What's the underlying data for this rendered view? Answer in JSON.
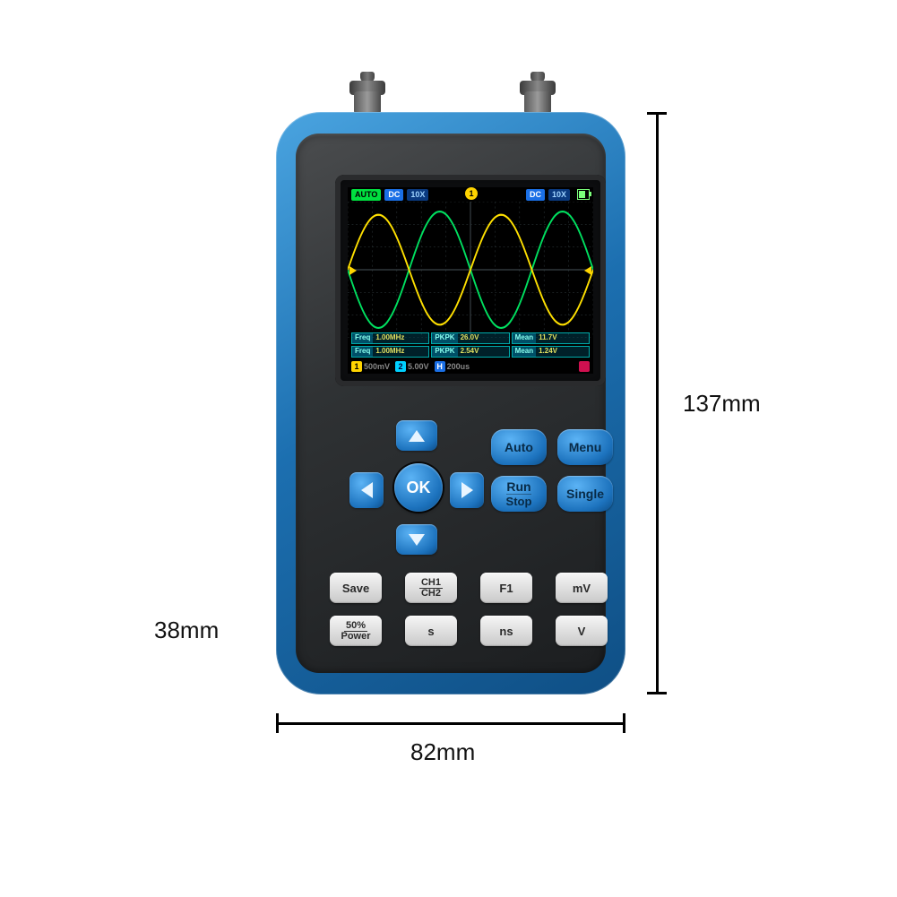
{
  "dimensions": {
    "height_label": "137mm",
    "width_label": "82mm",
    "depth_label": "38mm"
  },
  "device": {
    "case_color": "#1c72bd",
    "inner_color": "#2f3234"
  },
  "screen": {
    "background": "#000000",
    "grid_color": "#2a3336",
    "axis_color": "#3a4448",
    "topbar": {
      "mode": "AUTO",
      "ch1_cpl": "DC",
      "ch1_att": "10X",
      "ch2_cpl": "DC",
      "ch2_att": "10X",
      "trig_tag": "1"
    },
    "waves": {
      "ch1": {
        "color": "#ffe000",
        "amplitude": 0.85,
        "cycles": 2,
        "phase_deg": 0
      },
      "ch2": {
        "color": "#00e060",
        "amplitude": 0.9,
        "cycles": 2,
        "phase_deg": 180
      }
    },
    "measurements": [
      {
        "k": "Freq",
        "v": "1.00MHz"
      },
      {
        "k": "PKPK",
        "v": "26.0V"
      },
      {
        "k": "Mean",
        "v": "11.7V"
      },
      {
        "k": "Freq",
        "v": "1.00MHz"
      },
      {
        "k": "PKPK",
        "v": "2.54V"
      },
      {
        "k": "Mean",
        "v": "1.24V"
      }
    ],
    "bottom": {
      "ch1_div": "500mV",
      "ch2_div": "5.00V",
      "time_div": "200us"
    }
  },
  "buttons": {
    "ok": "OK",
    "auto": "Auto",
    "menu": "Menu",
    "run1": "Run",
    "run2": "Stop",
    "single": "Single",
    "save": "Save",
    "ch1": "CH1",
    "ch2": "CH2",
    "f1": "F1",
    "mv": "mV",
    "fifty": "50%",
    "power": "Power",
    "s": "s",
    "ns": "ns",
    "v": "V"
  }
}
